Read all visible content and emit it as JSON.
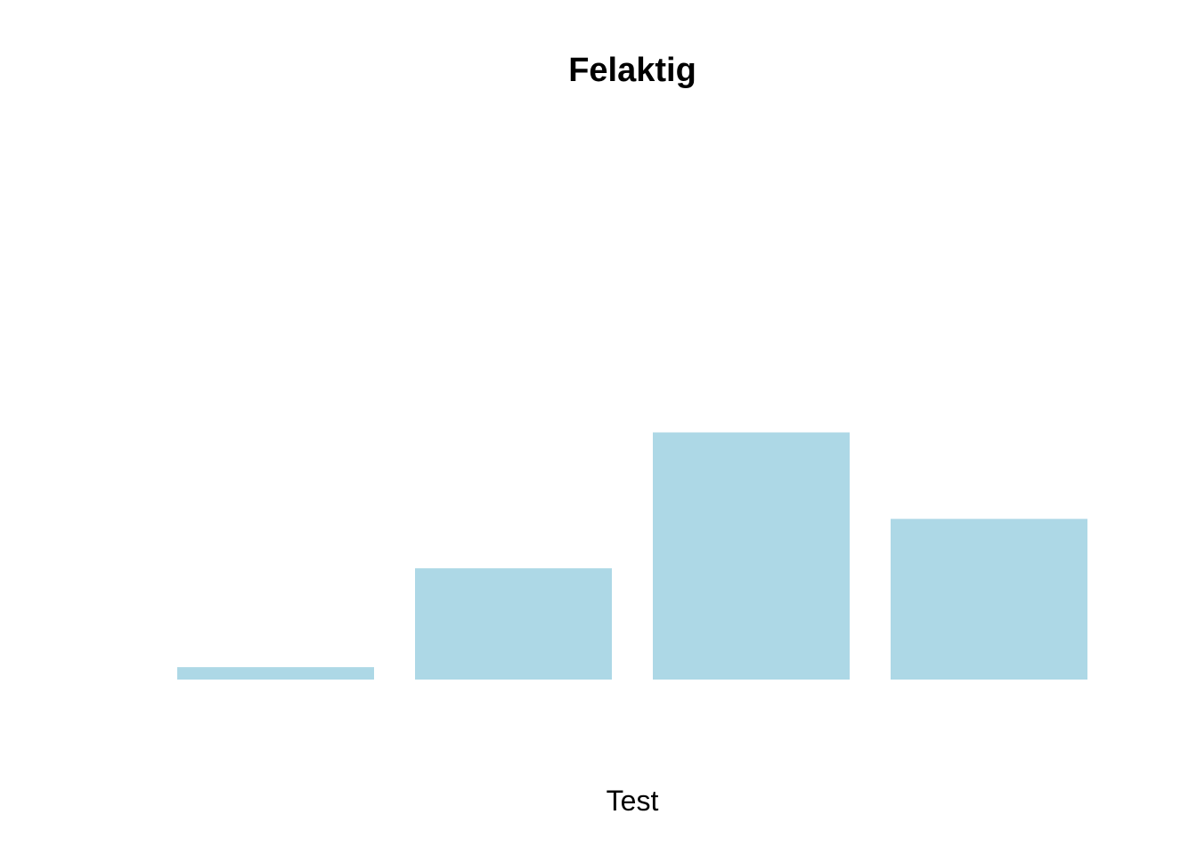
{
  "chart_data": {
    "type": "bar",
    "title": "Felaktig",
    "xlabel": "Test",
    "ylabel": "",
    "categories": [
      "",
      "",
      "",
      ""
    ],
    "values": [
      1,
      9,
      20,
      13
    ],
    "ylim": [
      0,
      40
    ],
    "bar_color": "#add8e6",
    "grid": false,
    "axes_visible": false
  }
}
